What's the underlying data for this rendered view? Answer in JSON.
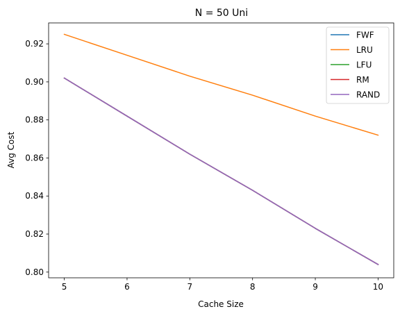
{
  "chart_data": {
    "type": "line",
    "title": "N = 50 Uni",
    "xlabel": "Cache Size",
    "ylabel": "Avg Cost",
    "xlim": [
      4.75,
      10.25
    ],
    "ylim": [
      0.797,
      0.931
    ],
    "xticks": [
      5,
      6,
      7,
      8,
      9,
      10
    ],
    "yticks": [
      0.8,
      0.82,
      0.84,
      0.86,
      0.88,
      0.9,
      0.92
    ],
    "grid": false,
    "legend_position": "top-right",
    "series": [
      {
        "name": "FWF",
        "color": "#1f77b4",
        "x": [
          5,
          6,
          7,
          8,
          9,
          10
        ],
        "y": [
          0.902,
          0.882,
          0.862,
          0.843,
          0.823,
          0.804
        ]
      },
      {
        "name": "LRU",
        "color": "#ff7f0e",
        "x": [
          5,
          6,
          7,
          8,
          9,
          10
        ],
        "y": [
          0.925,
          0.914,
          0.903,
          0.893,
          0.882,
          0.872
        ]
      },
      {
        "name": "LFU",
        "color": "#2ca02c",
        "x": [
          5,
          6,
          7,
          8,
          9,
          10
        ],
        "y": [
          0.902,
          0.882,
          0.862,
          0.843,
          0.823,
          0.804
        ]
      },
      {
        "name": "RM",
        "color": "#d62728",
        "x": [
          5,
          6,
          7,
          8,
          9,
          10
        ],
        "y": [
          0.902,
          0.882,
          0.862,
          0.843,
          0.823,
          0.804
        ]
      },
      {
        "name": "RAND",
        "color": "#9467bd",
        "x": [
          5,
          6,
          7,
          8,
          9,
          10
        ],
        "y": [
          0.902,
          0.882,
          0.862,
          0.843,
          0.823,
          0.804
        ]
      }
    ]
  }
}
